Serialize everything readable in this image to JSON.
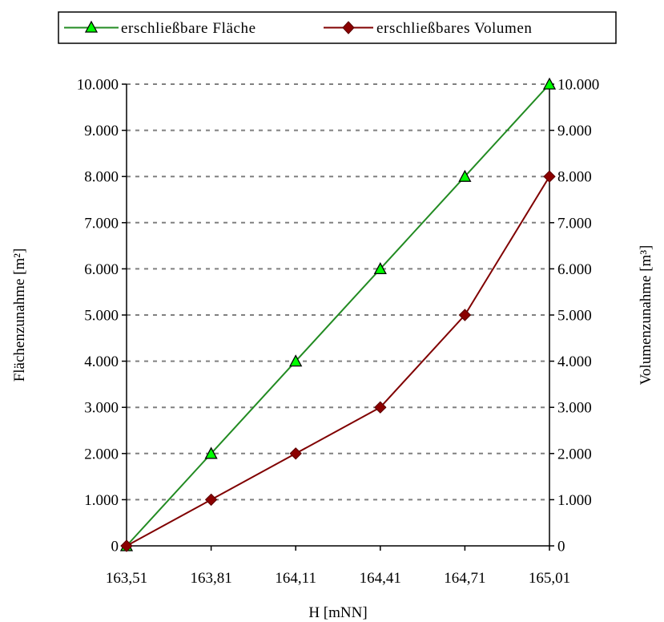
{
  "chart_data": {
    "type": "line",
    "x": [
      "163,51",
      "163,81",
      "164,11",
      "164,41",
      "164,71",
      "165,01"
    ],
    "xlabel": "H [mNN]",
    "ylabel_left": "Flächenzunahme [m²]",
    "ylabel_right": "Volumenzunahme [m³]",
    "ylim": [
      0,
      10000
    ],
    "y_ticks": [
      "0",
      "1.000",
      "2.000",
      "3.000",
      "4.000",
      "5.000",
      "6.000",
      "7.000",
      "8.000",
      "9.000",
      "10.000"
    ],
    "grid": "horizontal dashed",
    "legend_position": "top",
    "series": [
      {
        "name": "erschließbare Fläche",
        "axis": "left",
        "color": "#228b22",
        "marker": "triangle",
        "marker_fill": "#00ff00",
        "values": [
          0,
          2000,
          4000,
          6000,
          8000,
          10000
        ]
      },
      {
        "name": "erschließbares Volumen",
        "axis": "right",
        "color": "#800000",
        "marker": "diamond",
        "marker_fill": "#8b0000",
        "values": [
          0,
          1000,
          2000,
          3000,
          5000,
          8000
        ]
      }
    ]
  }
}
